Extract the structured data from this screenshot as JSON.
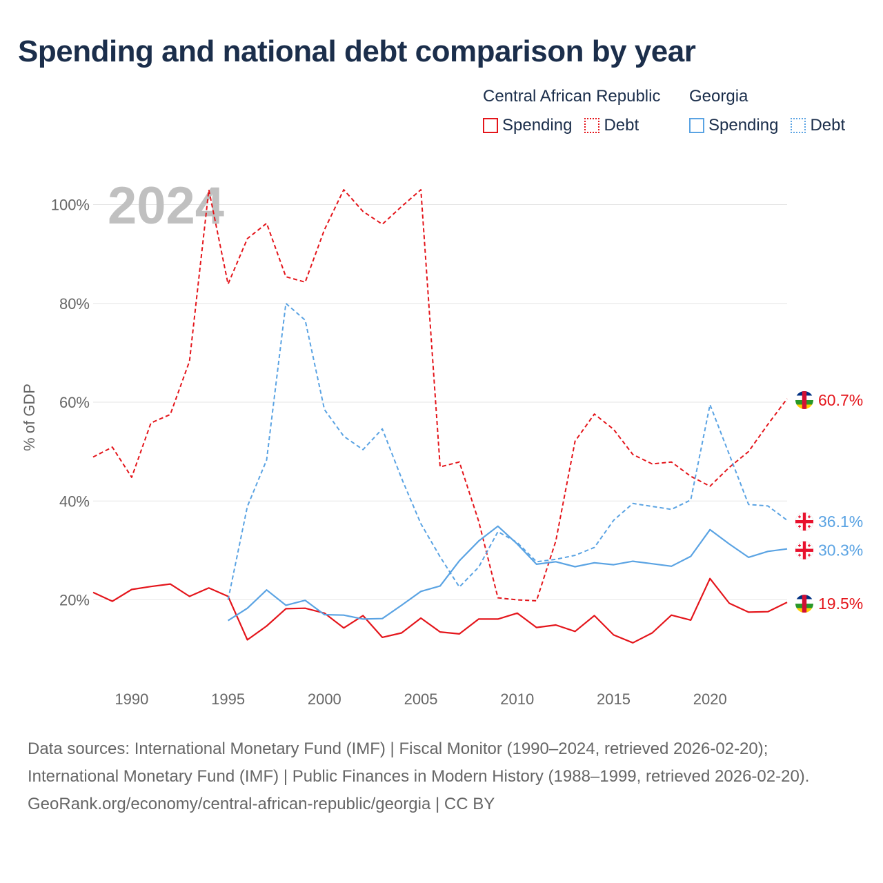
{
  "title": "Spending and national debt comparison by year",
  "legend": {
    "groups": [
      {
        "name": "Central African Republic",
        "items": [
          {
            "label": "Spending"
          },
          {
            "label": "Debt"
          }
        ]
      },
      {
        "name": "Georgia",
        "items": [
          {
            "label": "Spending"
          },
          {
            "label": "Debt"
          }
        ]
      }
    ]
  },
  "colors": {
    "car": "#e4151b",
    "georgia": "#5aa3e3",
    "grid": "#e6e6e6",
    "axis_text": "#666666",
    "year_watermark": "#c0c0c0"
  },
  "chart_data": {
    "type": "line",
    "year_label": "2024",
    "ylabel": "% of GDP",
    "xlim": [
      1988,
      2024
    ],
    "ylim": [
      0,
      105
    ],
    "x_ticks": [
      1990,
      1995,
      2000,
      2005,
      2010,
      2015,
      2020
    ],
    "y_ticks": [
      20,
      40,
      60,
      80,
      100
    ],
    "y_tick_labels": [
      "20%",
      "40%",
      "60%",
      "80%",
      "100%"
    ],
    "series": [
      {
        "name": "Central African Republic Spending",
        "country": "Central African Republic",
        "measure": "Spending",
        "color": "#e4151b",
        "dash": "solid",
        "end_label": "19.5%",
        "x": [
          1988,
          1989,
          1990,
          1991,
          1992,
          1993,
          1994,
          1995,
          1996,
          1997,
          1998,
          1999,
          2000,
          2001,
          2002,
          2003,
          2004,
          2005,
          2006,
          2007,
          2008,
          2009,
          2010,
          2011,
          2012,
          2013,
          2014,
          2015,
          2016,
          2017,
          2018,
          2019,
          2020,
          2021,
          2022,
          2023,
          2024
        ],
        "values": [
          21.5,
          19.7,
          22.1,
          22.7,
          23.2,
          20.7,
          22.4,
          20.7,
          11.9,
          14.7,
          18.2,
          18.3,
          17.3,
          14.3,
          16.8,
          12.4,
          13.3,
          16.3,
          13.5,
          13.1,
          16.1,
          16.1,
          17.3,
          14.4,
          14.9,
          13.6,
          16.8,
          12.9,
          11.3,
          13.3,
          16.9,
          15.9,
          24.3,
          19.3,
          17.5,
          17.6,
          19.5
        ]
      },
      {
        "name": "Central African Republic Debt",
        "country": "Central African Republic",
        "measure": "Debt",
        "color": "#e4151b",
        "dash": "dashed",
        "end_label": "60.7%",
        "x": [
          1988,
          1989,
          1990,
          1991,
          1992,
          1993,
          1994,
          1995,
          1996,
          1997,
          1998,
          1999,
          2000,
          2001,
          2002,
          2003,
          2004,
          2005,
          2006,
          2007,
          2008,
          2009,
          2010,
          2011,
          2012,
          2013,
          2014,
          2015,
          2016,
          2017,
          2018,
          2019,
          2020,
          2021,
          2022,
          2023,
          2024
        ],
        "values": [
          48.9,
          50.9,
          44.8,
          55.8,
          57.5,
          68.3,
          103.0,
          83.9,
          93.1,
          96.2,
          85.4,
          84.3,
          94.9,
          103.0,
          98.6,
          96.0,
          99.6,
          103.0,
          46.9,
          47.9,
          35.9,
          20.4,
          20.0,
          19.8,
          31.9,
          52.1,
          57.6,
          54.5,
          49.4,
          47.5,
          47.9,
          45.0,
          43.0,
          46.8,
          50.0,
          55.5,
          60.7
        ]
      },
      {
        "name": "Georgia Spending",
        "country": "Georgia",
        "measure": "Spending",
        "color": "#5aa3e3",
        "dash": "solid",
        "end_label": "30.3%",
        "x": [
          1995,
          1996,
          1997,
          1998,
          1999,
          2000,
          2001,
          2002,
          2003,
          2004,
          2005,
          2006,
          2007,
          2008,
          2009,
          2010,
          2011,
          2012,
          2013,
          2014,
          2015,
          2016,
          2017,
          2018,
          2019,
          2020,
          2021,
          2022,
          2023,
          2024
        ],
        "values": [
          15.8,
          18.3,
          22.0,
          18.9,
          19.9,
          17.0,
          16.9,
          16.1,
          16.2,
          18.9,
          21.7,
          22.8,
          27.9,
          31.9,
          34.9,
          31.3,
          27.2,
          27.7,
          26.7,
          27.5,
          27.1,
          27.8,
          27.3,
          26.8,
          28.8,
          34.2,
          31.3,
          28.6,
          29.8,
          30.3
        ]
      },
      {
        "name": "Georgia Debt",
        "country": "Georgia",
        "measure": "Debt",
        "color": "#5aa3e3",
        "dash": "dashed",
        "end_label": "36.1%",
        "x": [
          1995,
          1996,
          1997,
          1998,
          1999,
          2000,
          2001,
          2002,
          2003,
          2004,
          2005,
          2006,
          2007,
          2008,
          2009,
          2010,
          2011,
          2012,
          2013,
          2014,
          2015,
          2016,
          2017,
          2018,
          2019,
          2020,
          2021,
          2022,
          2023,
          2024
        ],
        "values": [
          20.0,
          38.9,
          48.3,
          80.0,
          76.6,
          58.5,
          53.1,
          50.4,
          54.6,
          44.6,
          35.4,
          28.7,
          22.6,
          26.6,
          33.8,
          31.6,
          27.7,
          28.2,
          29.0,
          30.6,
          36.1,
          39.5,
          38.9,
          38.3,
          40.2,
          59.5,
          49.4,
          39.3,
          39.0,
          36.1
        ]
      }
    ]
  },
  "sources": {
    "line1": "Data sources: International Monetary Fund (IMF) | Fiscal Monitor (1990–2024, retrieved 2026-02-20); International Monetary Fund (IMF) | Public Finances in Modern History (1988–1999, retrieved 2026-02-20).",
    "line2": "GeoRank.org/economy/central-african-republic/georgia | CC BY"
  }
}
